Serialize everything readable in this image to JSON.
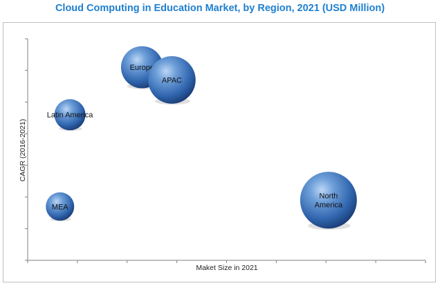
{
  "chart_data": {
    "type": "scatter",
    "title": "Cloud Computing in Education Market, by Region, 2021 (USD Million)",
    "xlabel": "Maket Size in 2021",
    "ylabel": "CAGR (2016-2021)",
    "grid": false,
    "series": [
      {
        "name": "Europe",
        "label": [
          "Europe"
        ],
        "x": 2.3,
        "y": 6.1,
        "size": 0.55
      },
      {
        "name": "APAC",
        "label": [
          "APAC"
        ],
        "x": 2.9,
        "y": 5.7,
        "size": 0.7
      },
      {
        "name": "Latin America",
        "label": [
          "Latin America"
        ],
        "x": 0.85,
        "y": 4.6,
        "size": 0.3
      },
      {
        "name": "MEA",
        "label": [
          "MEA"
        ],
        "x": 0.65,
        "y": 1.7,
        "size": 0.25
      },
      {
        "name": "North America",
        "label": [
          "North",
          "America"
        ],
        "x": 6.05,
        "y": 1.9,
        "size": 1.0
      }
    ],
    "xlim": [
      0,
      8
    ],
    "ylim": [
      0,
      7
    ]
  },
  "colors": {
    "title": "#1f7fcf",
    "bubble": "#3a6fb8",
    "axis": "#7f7f7f"
  }
}
